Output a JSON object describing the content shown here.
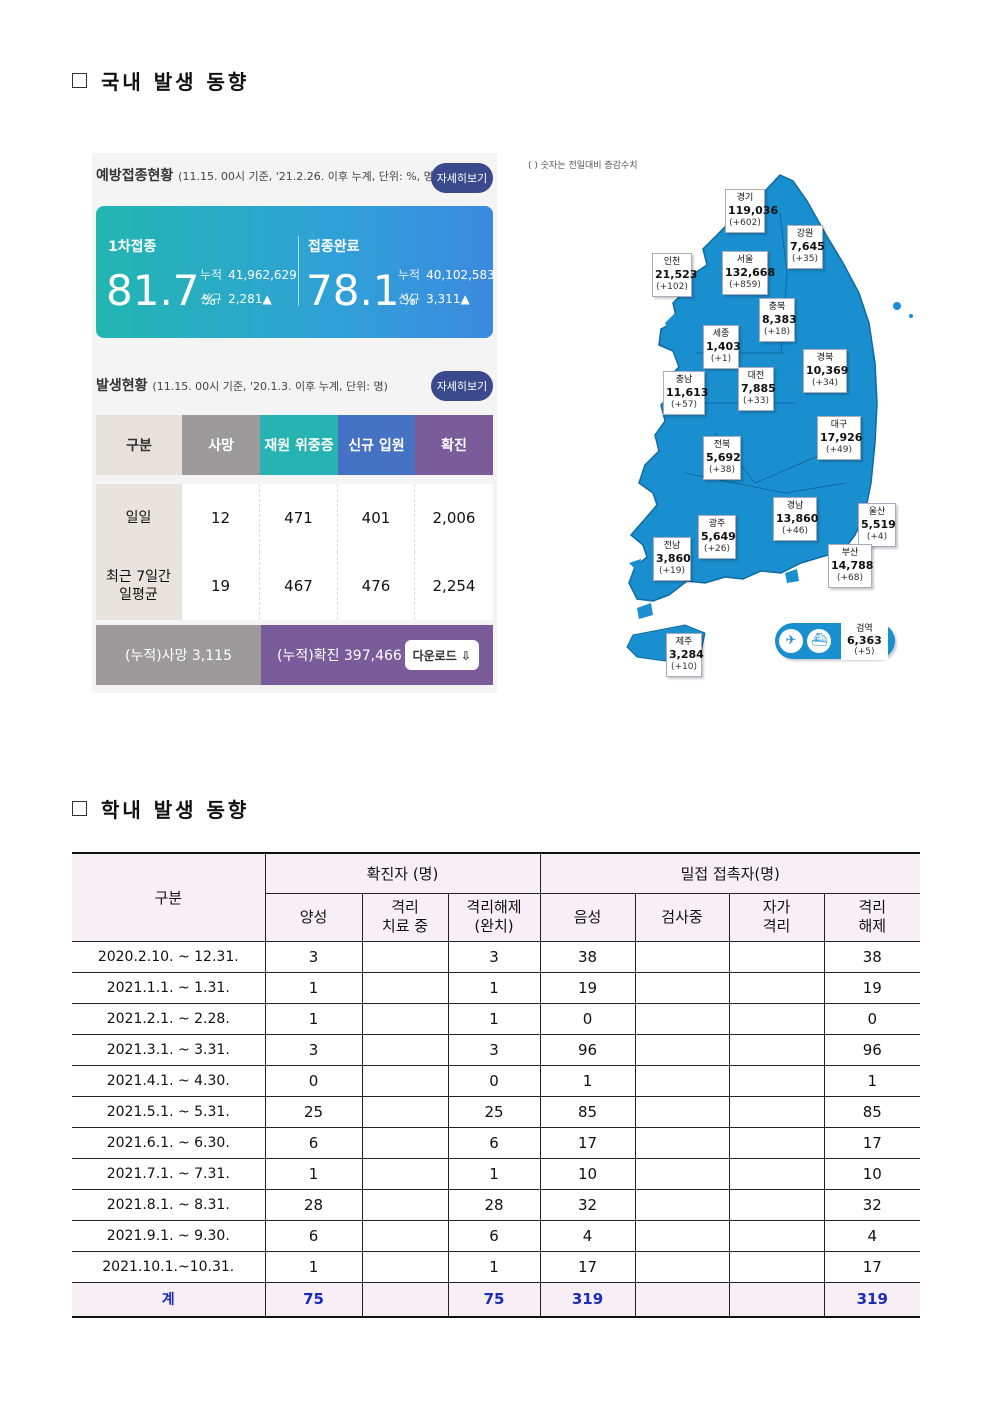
{
  "section1_title": "국내 발생 동향",
  "section2_title": "학내 발생 동향",
  "vaccination": {
    "title": "예방접종현황",
    "subtitle": "(11.15. 00시 기준, '21.2.26. 이후 누계, 단위: %, 명)",
    "detail_label": "자세히보기",
    "first_label": "1차접종",
    "first_rate": "81.7",
    "first_unit": "%",
    "first_cum_label": "누적",
    "first_cum": "41,962,629",
    "first_new_label": "신규",
    "first_new": "2,281▲",
    "full_label": "접종완료",
    "full_rate": "78.1",
    "full_unit": "%",
    "full_cum_label": "누적",
    "full_cum": "40,102,583",
    "full_new_label": "신규",
    "full_new": "3,311▲"
  },
  "occurrence": {
    "title": "발생현황",
    "subtitle": "(11.15. 00시 기준, '20.1.3. 이후 누계, 단위: 명)",
    "detail_label": "자세히보기",
    "headers": [
      "구분",
      "사망",
      "재원 위중증",
      "신규 입원",
      "확진"
    ],
    "rows": [
      {
        "label": "일일",
        "values": [
          "12",
          "471",
          "401",
          "2,006"
        ]
      },
      {
        "label": "최근 7일간\n일평균",
        "values": [
          "19",
          "467",
          "476",
          "2,254"
        ]
      }
    ],
    "cum_death": "(누적)사망  3,115",
    "cum_conf": "(누적)확진  397,466",
    "download_label": "다운로드 ⇩"
  },
  "map": {
    "note": "( ) 숫자는 전일대비 증감수치",
    "regions": [
      {
        "name": "경기",
        "value": "119,036",
        "delta": "(+602)"
      },
      {
        "name": "강원",
        "value": "7,645",
        "delta": "(+35)"
      },
      {
        "name": "인천",
        "value": "21,523",
        "delta": "(+102)"
      },
      {
        "name": "서울",
        "value": "132,668",
        "delta": "(+859)"
      },
      {
        "name": "충북",
        "value": "8,383",
        "delta": "(+18)"
      },
      {
        "name": "세종",
        "value": "1,403",
        "delta": "(+1)"
      },
      {
        "name": "경북",
        "value": "10,369",
        "delta": "(+34)"
      },
      {
        "name": "충남",
        "value": "11,613",
        "delta": "(+57)"
      },
      {
        "name": "대전",
        "value": "7,885",
        "delta": "(+33)"
      },
      {
        "name": "대구",
        "value": "17,926",
        "delta": "(+49)"
      },
      {
        "name": "전북",
        "value": "5,692",
        "delta": "(+38)"
      },
      {
        "name": "경남",
        "value": "13,860",
        "delta": "(+46)"
      },
      {
        "name": "울산",
        "value": "5,519",
        "delta": "(+4)"
      },
      {
        "name": "광주",
        "value": "5,649",
        "delta": "(+26)"
      },
      {
        "name": "전남",
        "value": "3,860",
        "delta": "(+19)"
      },
      {
        "name": "부산",
        "value": "14,788",
        "delta": "(+68)"
      },
      {
        "name": "검역",
        "value": "6,363",
        "delta": "(+5)"
      },
      {
        "name": "제주",
        "value": "3,284",
        "delta": "(+10)"
      }
    ]
  },
  "school": {
    "header_category": "구분",
    "header_confirmed": "확진자 (명)",
    "header_contacts": "밀접 접촉자(명)",
    "sub_headers": [
      "양성",
      "격리\n치료 중",
      "격리해제\n(완치)",
      "음성",
      "검사중",
      "자가\n격리",
      "격리\n해제"
    ],
    "rows": [
      {
        "period": "2020.2.10. ~ 12.31.",
        "cells": [
          "3",
          "",
          "3",
          "38",
          "",
          "",
          "38"
        ]
      },
      {
        "period": "2021.1.1. ~ 1.31.",
        "cells": [
          "1",
          "",
          "1",
          "19",
          "",
          "",
          "19"
        ]
      },
      {
        "period": "2021.2.1. ~ 2.28.",
        "cells": [
          "1",
          "",
          "1",
          "0",
          "",
          "",
          "0"
        ]
      },
      {
        "period": "2021.3.1. ~ 3.31.",
        "cells": [
          "3",
          "",
          "3",
          "96",
          "",
          "",
          "96"
        ]
      },
      {
        "period": "2021.4.1. ~ 4.30.",
        "cells": [
          "0",
          "",
          "0",
          "1",
          "",
          "",
          "1"
        ]
      },
      {
        "period": "2021.5.1. ~ 5.31.",
        "cells": [
          "25",
          "",
          "25",
          "85",
          "",
          "",
          "85"
        ]
      },
      {
        "period": "2021.6.1. ~ 6.30.",
        "cells": [
          "6",
          "",
          "6",
          "17",
          "",
          "",
          "17"
        ]
      },
      {
        "period": "2021.7.1. ~ 7.31.",
        "cells": [
          "1",
          "",
          "1",
          "10",
          "",
          "",
          "10"
        ]
      },
      {
        "period": "2021.8.1. ~ 8.31.",
        "cells": [
          "28",
          "",
          "28",
          "32",
          "",
          "",
          "32"
        ]
      },
      {
        "period": "2021.9.1. ~ 9.30.",
        "cells": [
          "6",
          "",
          "6",
          "4",
          "",
          "",
          "4"
        ]
      },
      {
        "period": "2021.10.1.~10.31.",
        "cells": [
          "1",
          "",
          "1",
          "17",
          "",
          "",
          "17"
        ]
      }
    ],
    "total": {
      "period": "계",
      "cells": [
        "75",
        "",
        "75",
        "319",
        "",
        "",
        "319"
      ]
    }
  },
  "colors": {
    "vaccine_gradient_start": "#22b6b1",
    "vaccine_gradient_end": "#3c8ade",
    "death": "#9c9a9b",
    "critical": "#27b3b1",
    "hospitalized": "#4572c2",
    "confirmed": "#7a5c9a",
    "map_fill": "#1a8fd0",
    "table_header_bg": "#f7eff5",
    "total_text": "#1a2bbd"
  }
}
